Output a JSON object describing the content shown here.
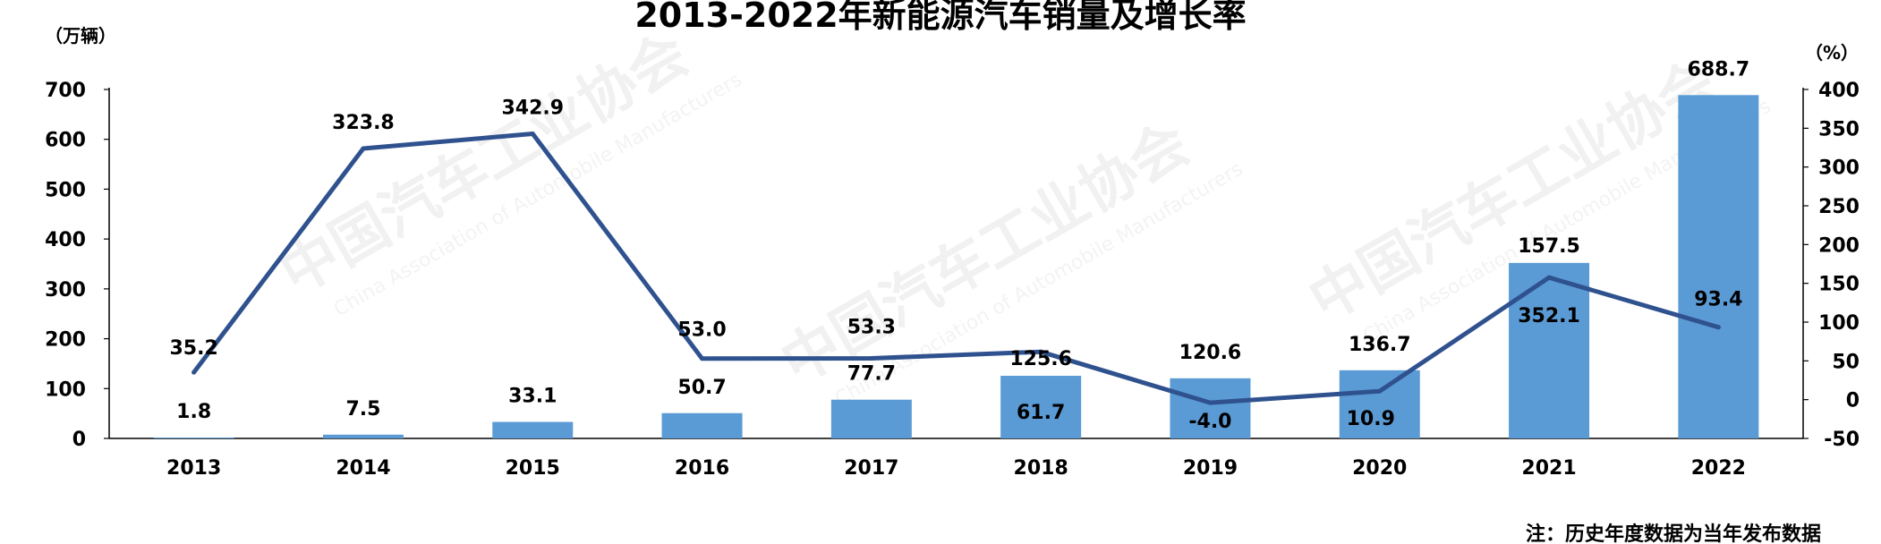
{
  "chart_data": {
    "type": "bar+line",
    "title": "2013-2022年新能源汽车销量及增长率",
    "left_unit": "（万辆）",
    "right_unit": "（%）",
    "note": "注：历史年度数据为当年发布数据",
    "categories": [
      "2013",
      "2014",
      "2015",
      "2016",
      "2017",
      "2018",
      "2019",
      "2020",
      "2021",
      "2022"
    ],
    "series": [
      {
        "type": "bar",
        "axis": "left",
        "color": "#5b9bd5",
        "values": [
          1.8,
          7.5,
          33.1,
          50.7,
          77.7,
          125.6,
          120.6,
          136.7,
          352.1,
          688.7
        ]
      },
      {
        "type": "line",
        "axis": "right",
        "color": "#2f528f",
        "values": [
          35.2,
          323.8,
          342.9,
          53.0,
          53.3,
          61.7,
          -4.0,
          10.9,
          157.5,
          93.4
        ]
      }
    ],
    "bar_labels": [
      "1.8",
      "7.5",
      "33.1",
      "50.7",
      "77.7",
      "125.6",
      "120.6",
      "136.7",
      "352.1",
      "688.7"
    ],
    "line_labels": [
      "35.2",
      "323.8",
      "342.9",
      "53.0",
      "53.3",
      "61.7",
      "-4.0",
      "10.9",
      "157.5",
      "93.4"
    ],
    "left_axis": {
      "min": 0,
      "max": 700,
      "ticks": [
        "0",
        "100",
        "200",
        "300",
        "400",
        "500",
        "600",
        "700"
      ]
    },
    "right_axis": {
      "min": -50,
      "max": 400,
      "ticks": [
        "-50",
        "0",
        "50",
        "100",
        "150",
        "200",
        "250",
        "300",
        "350",
        "400"
      ]
    },
    "grid": false,
    "legend": "none"
  },
  "watermark": {
    "text": "中国汽车工业协会",
    "subtext": "China Association of Automobile Manufacturers"
  }
}
